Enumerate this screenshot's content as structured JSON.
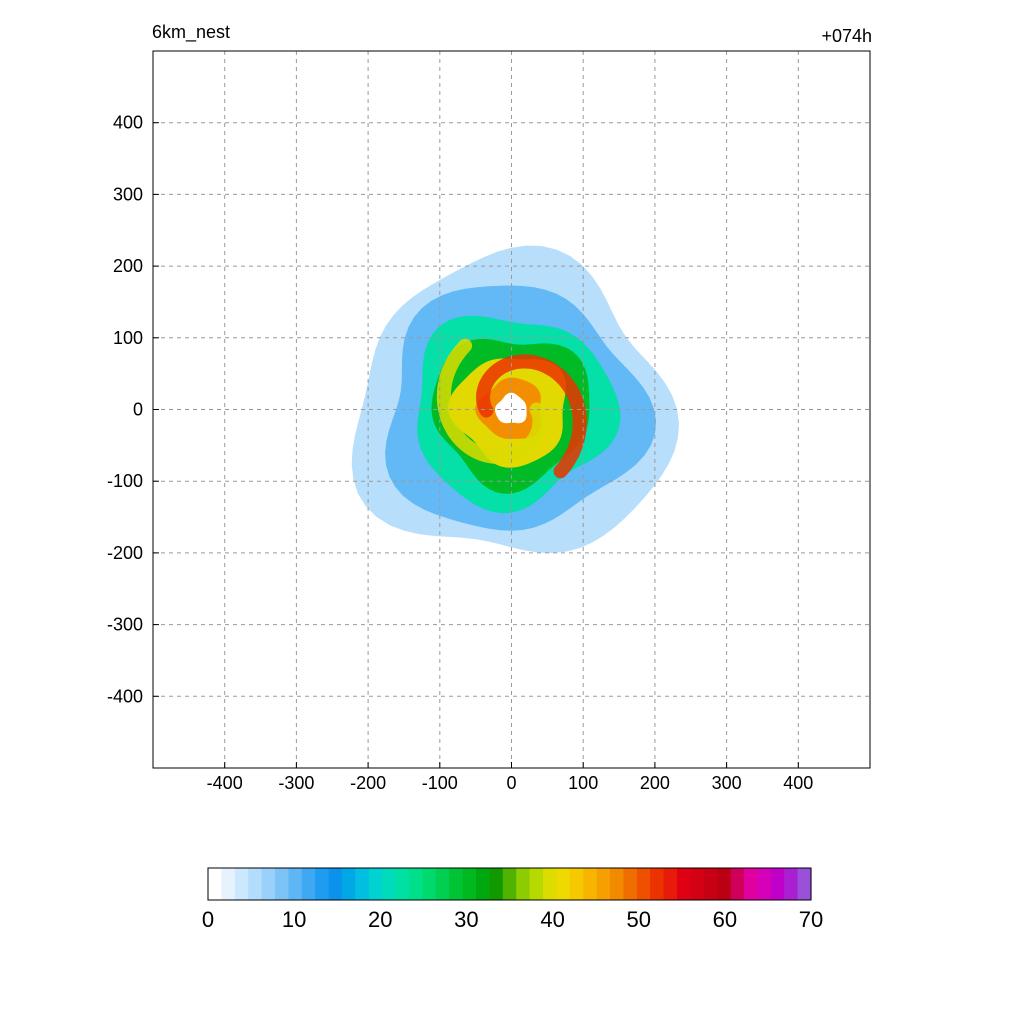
{
  "chart_data": {
    "type": "heatmap",
    "title_left": "6km_nest",
    "title_right": "+074h",
    "xlabel": "",
    "ylabel": "",
    "xlim": [
      -500,
      500
    ],
    "ylim": [
      -500,
      500
    ],
    "grid": true,
    "x_ticks": [
      -400,
      -300,
      -200,
      -100,
      0,
      100,
      200,
      300,
      400
    ],
    "y_ticks": [
      400,
      300,
      200,
      100,
      0,
      -100,
      -200,
      -300,
      -400
    ],
    "colorbar": {
      "min": 0,
      "max": 70,
      "labels": [
        0,
        10,
        20,
        30,
        40,
        50,
        60,
        70
      ],
      "colors": [
        "#ffffff",
        "#e6f3ff",
        "#cce8ff",
        "#b3ddfc",
        "#99d1fa",
        "#7cc4f7",
        "#5eb6f5",
        "#3fa8f3",
        "#1e9cf0",
        "#0b92ec",
        "#00a8e6",
        "#00bfe0",
        "#00d1d1",
        "#00dbbb",
        "#00e0a3",
        "#00e08a",
        "#00d96e",
        "#00cf52",
        "#00c436",
        "#00b81f",
        "#00a80f",
        "#129900",
        "#4fb300",
        "#8ccc00",
        "#b8d900",
        "#dcdc00",
        "#eed900",
        "#f5c800",
        "#f7b500",
        "#f5a000",
        "#f28a00",
        "#f06e00",
        "#ee5000",
        "#eb3300",
        "#e81a0a",
        "#e00014",
        "#d40014",
        "#c80014",
        "#bc0014",
        "#d0005a",
        "#e000a0",
        "#d600b8",
        "#c000c8",
        "#aa20d0",
        "#9a50d8"
      ]
    },
    "field": {
      "units_hint": "colorbar 0-70",
      "description_rings": [
        {
          "radius": 220,
          "value": 4
        },
        {
          "radius": 180,
          "value": 10
        },
        {
          "radius": 140,
          "value": 22
        },
        {
          "radius": 110,
          "value": 30
        },
        {
          "radius": 80,
          "value": 42
        },
        {
          "radius": 45,
          "value": 48
        },
        {
          "radius": 22,
          "value": 0
        }
      ]
    }
  }
}
